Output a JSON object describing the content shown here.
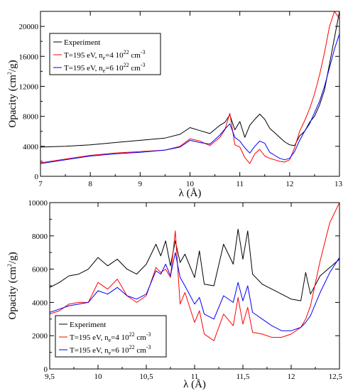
{
  "chart_data": [
    {
      "type": "line",
      "xlabel": "λ (Å)",
      "ylabel": "Opacity (cm²/g)",
      "ylabel_base": "Opacity (cm",
      "ylabel_sup": "2",
      "ylabel_tail": "/g)",
      "xlim": [
        7,
        13
      ],
      "ylim": [
        0,
        22000
      ],
      "xticks": [
        7,
        8,
        9,
        10,
        11,
        12,
        13
      ],
      "xtick_labels": [
        "7",
        "8",
        "9",
        "10",
        "11",
        "12",
        "13"
      ],
      "yticks": [
        0,
        4000,
        8000,
        12000,
        16000,
        20000
      ],
      "ytick_labels": [
        "0",
        "4000",
        "8000",
        "12000",
        "16000",
        "20000"
      ],
      "legend_position": "upper-left",
      "series": [
        {
          "name": "Experiment",
          "name_parts": [
            "Experiment"
          ],
          "color": "#000000",
          "x": [
            7.0,
            7.5,
            8.0,
            8.5,
            9.0,
            9.5,
            9.8,
            10.0,
            10.2,
            10.4,
            10.6,
            10.7,
            10.8,
            10.9,
            11.0,
            11.1,
            11.2,
            11.3,
            11.4,
            11.5,
            11.6,
            11.7,
            11.8,
            11.9,
            12.0,
            12.1,
            12.2,
            12.3,
            12.4,
            12.5,
            12.6,
            12.7,
            12.8,
            12.9,
            13.0
          ],
          "y": [
            3900,
            4000,
            4200,
            4500,
            4800,
            5100,
            5600,
            6500,
            6100,
            5700,
            6800,
            7200,
            8200,
            6200,
            7300,
            5200,
            6800,
            7600,
            8300,
            7600,
            6400,
            5800,
            5200,
            4600,
            4200,
            4100,
            5400,
            6000,
            7200,
            8000,
            9500,
            11500,
            15000,
            18500,
            22000
          ]
        },
        {
          "name": "T=195 eV, ne=4 10²² cm⁻³",
          "name_parts": [
            "T=195 eV, n",
            "e",
            "=4 10",
            "22",
            " cm",
            "-3"
          ],
          "color": "#ff0000",
          "x": [
            7.0,
            7.5,
            8.0,
            8.5,
            9.0,
            9.5,
            9.8,
            10.0,
            10.2,
            10.4,
            10.6,
            10.7,
            10.8,
            10.9,
            11.0,
            11.1,
            11.2,
            11.3,
            11.4,
            11.5,
            11.6,
            11.7,
            11.8,
            11.9,
            12.0,
            12.1,
            12.2,
            12.3,
            12.4,
            12.5,
            12.6,
            12.7,
            12.8,
            12.9,
            13.0
          ],
          "y": [
            1800,
            2300,
            2800,
            3100,
            3300,
            3500,
            4000,
            5000,
            4700,
            4100,
            5200,
            6200,
            8400,
            4200,
            3900,
            2500,
            1700,
            3000,
            3600,
            2700,
            2400,
            2200,
            2000,
            1900,
            2200,
            3800,
            6000,
            7400,
            9000,
            11000,
            13500,
            16500,
            20000,
            22000,
            21000
          ]
        },
        {
          "name": "T=195 eV, ne=6 10²² cm⁻³",
          "name_parts": [
            "T=195 eV, n",
            "e",
            "=6 10",
            "22",
            " cm",
            "-3"
          ],
          "color": "#0000ff",
          "x": [
            7.0,
            7.5,
            8.0,
            8.5,
            9.0,
            9.5,
            9.8,
            10.0,
            10.2,
            10.4,
            10.6,
            10.7,
            10.8,
            10.9,
            11.0,
            11.1,
            11.2,
            11.3,
            11.4,
            11.5,
            11.6,
            11.7,
            11.8,
            11.9,
            12.0,
            12.1,
            12.2,
            12.3,
            12.4,
            12.5,
            12.6,
            12.7,
            12.8,
            12.9,
            13.0
          ],
          "y": [
            1700,
            2200,
            2700,
            3000,
            3200,
            3500,
            3900,
            4800,
            4500,
            4300,
            5500,
            6300,
            7000,
            5200,
            4700,
            3800,
            3100,
            4000,
            4700,
            4400,
            3200,
            2800,
            2400,
            2200,
            2400,
            3300,
            4800,
            6000,
            7000,
            8500,
            10000,
            12000,
            14500,
            17000,
            19000
          ]
        }
      ]
    },
    {
      "type": "line",
      "xlabel": "λ (Å)",
      "ylabel": "Opacity (cm²/g)",
      "ylabel_base": "Opacity (cm",
      "ylabel_sup": "2",
      "ylabel_tail": "/g)",
      "xlim": [
        9.5,
        12.5
      ],
      "ylim": [
        0,
        10000
      ],
      "xticks": [
        9.5,
        10,
        10.5,
        11,
        11.5,
        12,
        12.5
      ],
      "xtick_labels": [
        "9,5",
        "10",
        "10,5",
        "11",
        "11,5",
        "12",
        "12,5"
      ],
      "yticks": [
        0,
        2000,
        4000,
        6000,
        8000,
        10000
      ],
      "ytick_labels": [
        "0",
        "2000",
        "4000",
        "6000",
        "8000",
        "10000"
      ],
      "legend_position": "lower-left",
      "series": [
        {
          "name": "Experiment",
          "name_parts": [
            "Experiment"
          ],
          "color": "#000000",
          "x": [
            9.5,
            9.6,
            9.7,
            9.8,
            9.9,
            10.0,
            10.1,
            10.2,
            10.3,
            10.4,
            10.5,
            10.6,
            10.65,
            10.7,
            10.75,
            10.8,
            10.85,
            10.9,
            11.0,
            11.05,
            11.1,
            11.2,
            11.3,
            11.4,
            11.45,
            11.5,
            11.55,
            11.6,
            11.7,
            11.8,
            11.9,
            12.0,
            12.1,
            12.15,
            12.2,
            12.3,
            12.4,
            12.5
          ],
          "y": [
            4900,
            5200,
            5600,
            5700,
            6000,
            6700,
            6200,
            6600,
            6000,
            5700,
            6300,
            7500,
            6800,
            7700,
            6200,
            7700,
            6400,
            6900,
            5500,
            7100,
            5100,
            5000,
            7500,
            6300,
            8400,
            6600,
            8300,
            5700,
            5100,
            4800,
            4500,
            4200,
            4100,
            5800,
            4500,
            5600,
            6100,
            6600
          ]
        },
        {
          "name": "T=195 eV, ne=4 10²² cm⁻³",
          "name_parts": [
            "T=195 eV, n",
            "e",
            "=4 10",
            "22",
            " cm",
            "-3"
          ],
          "color": "#ff0000",
          "x": [
            9.5,
            9.6,
            9.7,
            9.8,
            9.9,
            10.0,
            10.1,
            10.2,
            10.3,
            10.4,
            10.5,
            10.6,
            10.65,
            10.7,
            10.75,
            10.8,
            10.85,
            10.9,
            11.0,
            11.05,
            11.1,
            11.2,
            11.3,
            11.4,
            11.45,
            11.5,
            11.55,
            11.6,
            11.7,
            11.8,
            11.9,
            12.0,
            12.1,
            12.15,
            12.2,
            12.3,
            12.4,
            12.5
          ],
          "y": [
            3300,
            3500,
            3900,
            4000,
            4000,
            5200,
            4800,
            5400,
            4400,
            4000,
            4400,
            6100,
            5800,
            6000,
            5500,
            8300,
            3900,
            4600,
            2800,
            3500,
            2100,
            1700,
            3300,
            2600,
            4300,
            2700,
            3700,
            2200,
            2100,
            1900,
            1900,
            2100,
            2500,
            3000,
            3800,
            6500,
            8800,
            10000
          ]
        },
        {
          "name": "T=195 eV, ne=6 10²² cm⁻³",
          "name_parts": [
            "T=195 eV, n",
            "e",
            "=6 10",
            "22",
            " cm",
            "-3"
          ],
          "color": "#0000ff",
          "x": [
            9.5,
            9.6,
            9.7,
            9.8,
            9.9,
            10.0,
            10.1,
            10.2,
            10.3,
            10.4,
            10.5,
            10.6,
            10.65,
            10.7,
            10.75,
            10.8,
            10.85,
            10.9,
            11.0,
            11.05,
            11.1,
            11.2,
            11.3,
            11.4,
            11.45,
            11.5,
            11.55,
            11.6,
            11.7,
            11.8,
            11.9,
            12.0,
            12.1,
            12.15,
            12.2,
            12.3,
            12.4,
            12.5
          ],
          "y": [
            3400,
            3600,
            3800,
            3900,
            4000,
            4700,
            4500,
            4900,
            4400,
            4200,
            4500,
            5900,
            5700,
            6300,
            5600,
            7000,
            5500,
            5000,
            3900,
            4300,
            3300,
            3000,
            4400,
            4000,
            5200,
            4100,
            5000,
            3400,
            3000,
            2600,
            2300,
            2300,
            2500,
            2800,
            3200,
            4600,
            5800,
            6700
          ]
        }
      ]
    }
  ]
}
